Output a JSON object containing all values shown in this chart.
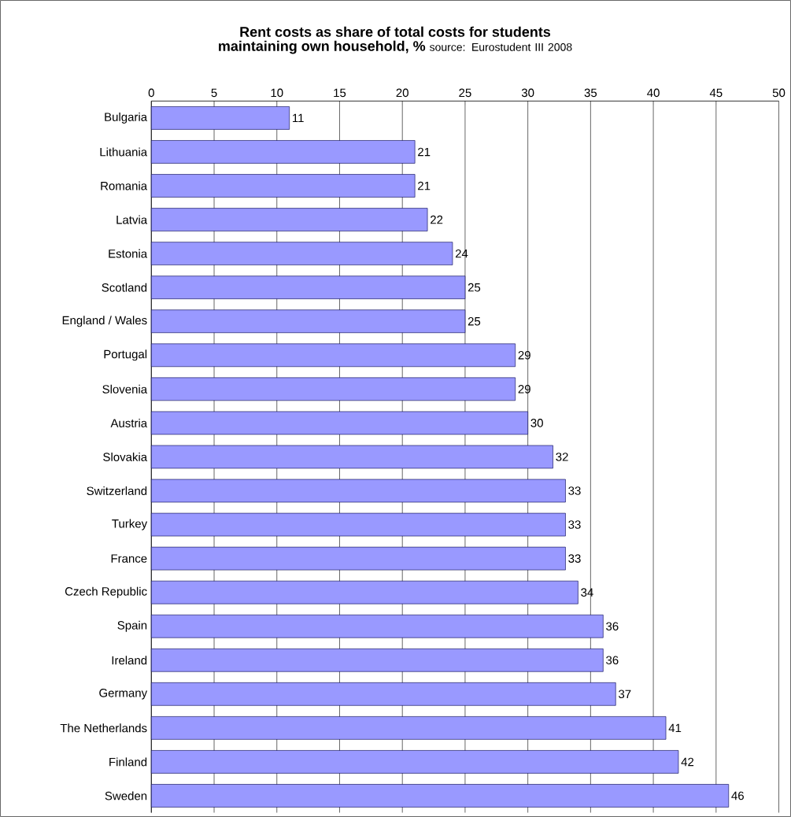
{
  "chart_data": {
    "type": "bar",
    "orientation": "horizontal",
    "title": "Rent costs as share of total costs for students maintaining own household, %",
    "annotations": [
      "source: Eurostudent III 2008"
    ],
    "categories": [
      "Bulgaria",
      "Lithuania",
      "Romania",
      "Latvia",
      "Estonia",
      "Scotland",
      "England / Wales",
      "Portugal",
      "Slovenia",
      "Austria",
      "Slovakia",
      "Switzerland",
      "Turkey",
      "France",
      "Czech Republic",
      "Spain",
      "Ireland",
      "Germany",
      "The Netherlands",
      "Finland",
      "Sweden"
    ],
    "values": [
      11,
      21,
      21,
      22,
      24,
      25,
      25,
      29,
      29,
      30,
      32,
      33,
      33,
      33,
      34,
      36,
      36,
      37,
      41,
      42,
      46
    ],
    "value_labels": [
      "11",
      "21",
      "21",
      "22",
      "24",
      "25",
      "25",
      "29",
      "29",
      "30",
      "32",
      "33",
      "33",
      "33",
      "34",
      "36",
      "36",
      "37",
      "41",
      "42",
      "46"
    ],
    "color": "#9999ff",
    "xlim": [
      0,
      50
    ],
    "xticks": [
      0,
      5,
      10,
      15,
      20,
      25,
      30,
      35,
      40,
      45,
      50
    ],
    "grid": "x"
  }
}
